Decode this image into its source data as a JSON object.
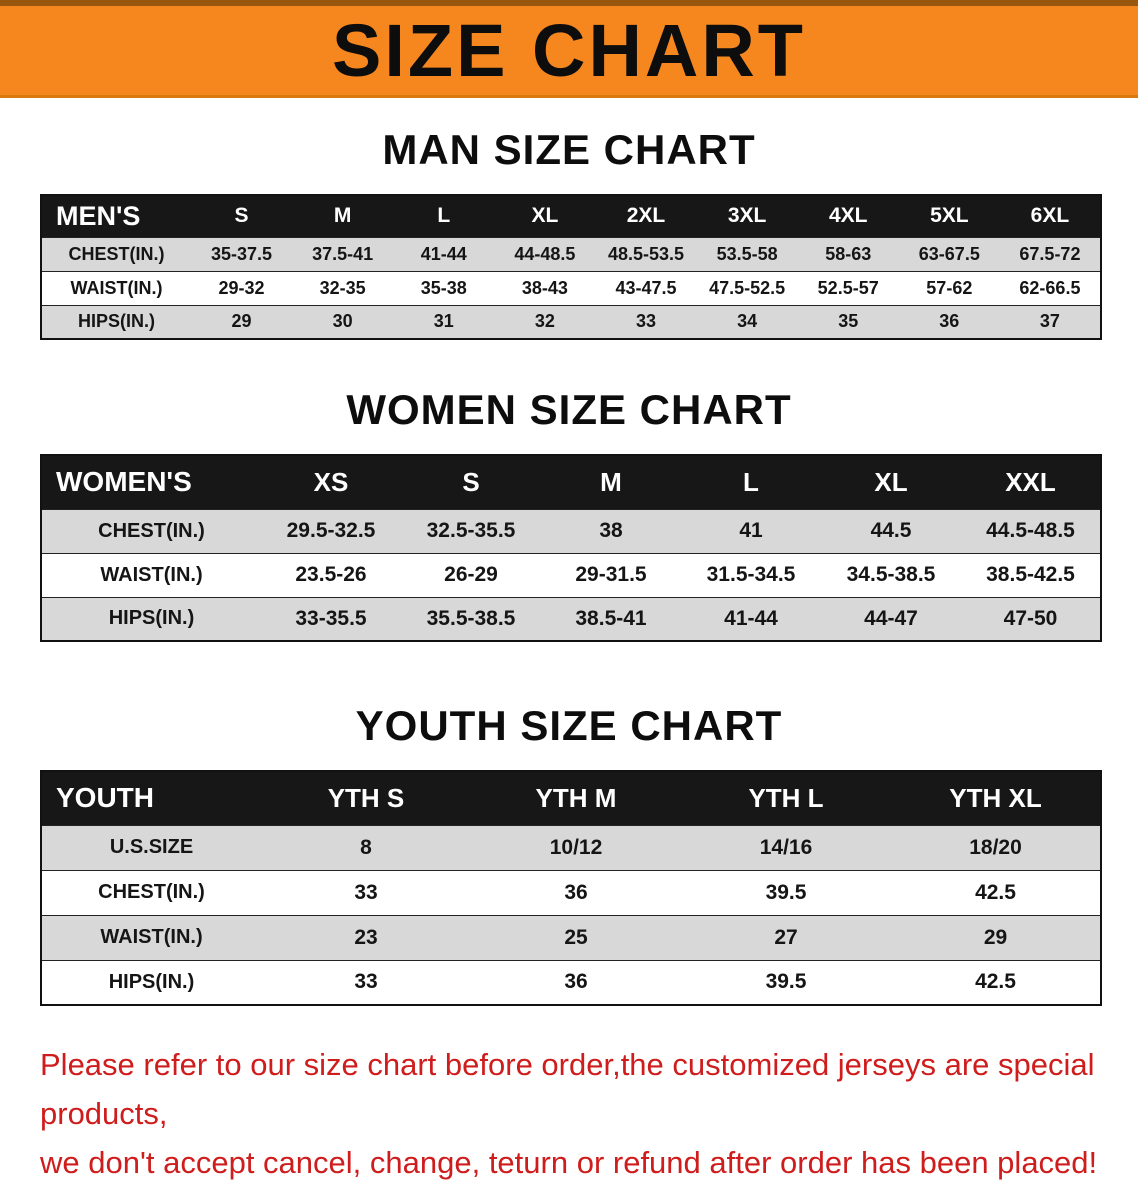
{
  "banner": {
    "title": "SIZE CHART",
    "bg_color": "#f6871e"
  },
  "men": {
    "heading": "MAN SIZE CHART",
    "label": "MEN'S",
    "columns": [
      "S",
      "M",
      "L",
      "XL",
      "2XL",
      "3XL",
      "4XL",
      "5XL",
      "6XL"
    ],
    "rows": [
      {
        "label": "CHEST(IN.)",
        "values": [
          "35-37.5",
          "37.5-41",
          "41-44",
          "44-48.5",
          "48.5-53.5",
          "53.5-58",
          "58-63",
          "63-67.5",
          "67.5-72"
        ]
      },
      {
        "label": "WAIST(IN.)",
        "values": [
          "29-32",
          "32-35",
          "35-38",
          "38-43",
          "43-47.5",
          "47.5-52.5",
          "52.5-57",
          "57-62",
          "62-66.5"
        ]
      },
      {
        "label": "HIPS(IN.)",
        "values": [
          "29",
          "30",
          "31",
          "32",
          "33",
          "34",
          "35",
          "36",
          "37"
        ]
      }
    ]
  },
  "women": {
    "heading": "WOMEN SIZE CHART",
    "label": "WOMEN'S",
    "columns": [
      "XS",
      "S",
      "M",
      "L",
      "XL",
      "XXL"
    ],
    "rows": [
      {
        "label": "CHEST(IN.)",
        "values": [
          "29.5-32.5",
          "32.5-35.5",
          "38",
          "41",
          "44.5",
          "44.5-48.5"
        ]
      },
      {
        "label": "WAIST(IN.)",
        "values": [
          "23.5-26",
          "26-29",
          "29-31.5",
          "31.5-34.5",
          "34.5-38.5",
          "38.5-42.5"
        ]
      },
      {
        "label": "HIPS(IN.)",
        "values": [
          "33-35.5",
          "35.5-38.5",
          "38.5-41",
          "41-44",
          "44-47",
          "47-50"
        ]
      }
    ]
  },
  "youth": {
    "heading": "YOUTH SIZE CHART",
    "label": "YOUTH",
    "columns": [
      "YTH S",
      "YTH M",
      "YTH L",
      "YTH XL"
    ],
    "rows": [
      {
        "label": "U.S.SIZE",
        "values": [
          "8",
          "10/12",
          "14/16",
          "18/20"
        ]
      },
      {
        "label": "CHEST(IN.)",
        "values": [
          "33",
          "36",
          "39.5",
          "42.5"
        ]
      },
      {
        "label": "WAIST(IN.)",
        "values": [
          "23",
          "25",
          "27",
          "29"
        ]
      },
      {
        "label": "HIPS(IN.)",
        "values": [
          "33",
          "36",
          "39.5",
          "42.5"
        ]
      }
    ]
  },
  "disclaimer": {
    "line1": "Please refer to our size chart before order,the customized jerseys are special products,",
    "line2": "we don't accept cancel, change, teturn or refund after order has been placed!"
  }
}
